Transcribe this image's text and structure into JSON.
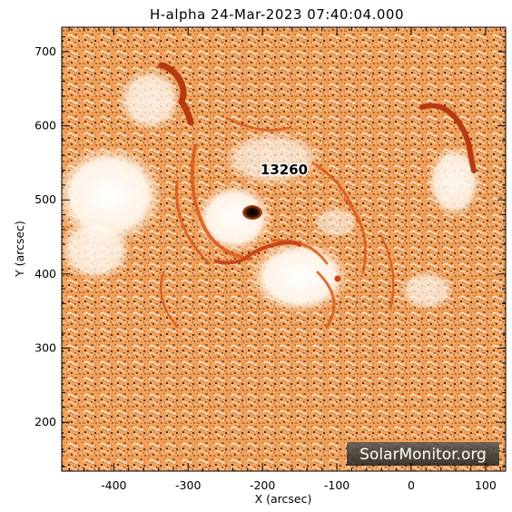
{
  "title": "H-alpha 24-Mar-2023 07:40:04.000",
  "x_axis": {
    "label": "X (arcsec)",
    "ticks": [
      {
        "value": -400,
        "label": "-400"
      },
      {
        "value": -300,
        "label": "-300"
      },
      {
        "value": -200,
        "label": "-200"
      },
      {
        "value": -100,
        "label": "-100"
      },
      {
        "value": 0,
        "label": "0"
      },
      {
        "value": 100,
        "label": "100"
      }
    ],
    "range": [
      -470,
      127
    ]
  },
  "y_axis": {
    "label": "Y (arcsec)",
    "ticks": [
      {
        "value": 200,
        "label": "200"
      },
      {
        "value": 300,
        "label": "300"
      },
      {
        "value": 400,
        "label": "400"
      },
      {
        "value": 500,
        "label": "500"
      },
      {
        "value": 600,
        "label": "600"
      },
      {
        "value": 700,
        "label": "700"
      }
    ],
    "range": [
      134,
      733
    ]
  },
  "region_label": "13260",
  "watermark": "SolarMonitor.org",
  "colors": {
    "background_orange": "#f07a26",
    "light_orange": "#f7a45a",
    "plage_white": "#fff7ef",
    "dark_speckle": "#1a0a02",
    "filament": "#b83a10",
    "sunspot": "#2a0e00"
  }
}
